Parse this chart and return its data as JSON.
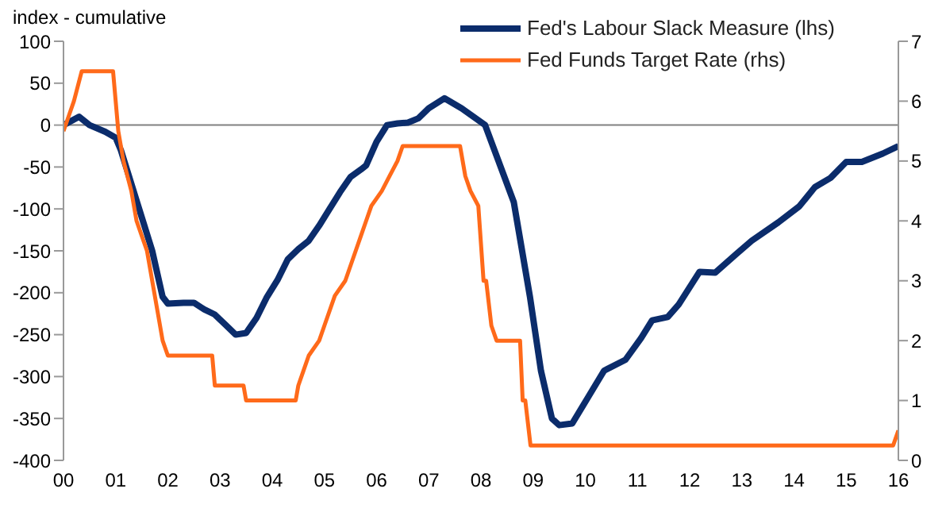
{
  "chart_data": {
    "type": "line",
    "ylabel": "index - cumulative",
    "legend": "top right",
    "marker": "none",
    "line_style": "solid",
    "xlim": [
      0,
      16
    ],
    "xticks": [
      {
        "value": 0,
        "label": "00"
      },
      {
        "value": 1,
        "label": "01"
      },
      {
        "value": 2,
        "label": "02"
      },
      {
        "value": 3,
        "label": "03"
      },
      {
        "value": 4,
        "label": "04"
      },
      {
        "value": 5,
        "label": "05"
      },
      {
        "value": 6,
        "label": "06"
      },
      {
        "value": 7,
        "label": "07"
      },
      {
        "value": 8,
        "label": "08"
      },
      {
        "value": 9,
        "label": "09"
      },
      {
        "value": 10,
        "label": "10"
      },
      {
        "value": 11,
        "label": "11"
      },
      {
        "value": 12,
        "label": "12"
      },
      {
        "value": 13,
        "label": "13"
      },
      {
        "value": 14,
        "label": "14"
      },
      {
        "value": 15,
        "label": "15"
      },
      {
        "value": 16,
        "label": "16"
      }
    ],
    "ylim": [
      -400,
      100
    ],
    "yticks": [
      -400,
      -350,
      -300,
      -250,
      -200,
      -150,
      -100,
      -50,
      0,
      50,
      100
    ],
    "y2lim": [
      0,
      7
    ],
    "y2ticks": [
      0,
      1,
      2,
      3,
      4,
      5,
      6,
      7
    ],
    "ref_lines": [
      {
        "axis": "y",
        "value": 0,
        "color": "#808080"
      }
    ],
    "series": [
      {
        "name": "Fed's Labour Slack Measure (lhs)",
        "color": "#0b2c6b",
        "x": [
          0,
          0.3,
          0.5,
          0.8,
          1.0,
          1.1,
          1.3,
          1.5,
          1.7,
          1.9,
          2.0,
          2.3,
          2.5,
          2.7,
          2.9,
          3.1,
          3.3,
          3.5,
          3.7,
          3.9,
          4.1,
          4.3,
          4.5,
          4.7,
          4.9,
          5.1,
          5.3,
          5.5,
          5.7,
          5.8,
          6.0,
          6.2,
          6.4,
          6.6,
          6.8,
          7.0,
          7.3,
          7.63,
          8.08,
          8.63,
          8.94,
          9.15,
          9.36,
          9.5,
          9.75,
          10.06,
          10.36,
          10.77,
          11.07,
          11.28,
          11.58,
          11.79,
          12.19,
          12.49,
          12.89,
          13.19,
          13.7,
          14.1,
          14.4,
          14.7,
          15.0,
          15.3,
          15.7,
          16.0
        ],
        "values": [
          0,
          10,
          0,
          -8,
          -15,
          -30,
          -70,
          -110,
          -150,
          -205,
          -213,
          -212,
          -212,
          -220,
          -226,
          -238,
          -250,
          -248,
          -230,
          -205,
          -185,
          -160,
          -148,
          -138,
          -120,
          -100,
          -80,
          -62,
          -53,
          -48,
          -20,
          0,
          2,
          3,
          8,
          20,
          32,
          20,
          0,
          -92,
          -205,
          -293,
          -350,
          -358,
          -356,
          -324,
          -293,
          -280,
          -254,
          -233,
          -229,
          -214,
          -175,
          -176,
          -154,
          -138,
          -116,
          -97,
          -74,
          -63,
          -44,
          -44,
          -34,
          -25
        ]
      },
      {
        "name": "Fed Funds Target Rate (rhs)",
        "color": "#ff6a1a",
        "axis": "y2",
        "x": [
          0,
          0.1,
          0.2,
          0.35,
          0.95,
          1.05,
          1.15,
          1.3,
          1.4,
          1.5,
          1.6,
          1.7,
          1.8,
          1.9,
          2.0,
          2.85,
          2.9,
          3.45,
          3.5,
          4.45,
          4.5,
          4.6,
          4.7,
          4.9,
          5.0,
          5.2,
          5.4,
          5.6,
          5.7,
          5.8,
          5.9,
          6.1,
          6.25,
          6.4,
          6.5,
          7.6,
          7.7,
          7.8,
          7.95,
          8.05,
          8.1,
          8.2,
          8.3,
          8.75,
          8.8,
          8.85,
          8.95,
          15.9,
          16.0
        ],
        "values": [
          5.5,
          5.75,
          6.0,
          6.5,
          6.5,
          5.5,
          5.0,
          4.5,
          4.0,
          3.75,
          3.5,
          3.0,
          2.5,
          2.0,
          1.75,
          1.75,
          1.25,
          1.25,
          1.0,
          1.0,
          1.25,
          1.5,
          1.75,
          2.0,
          2.25,
          2.75,
          3.0,
          3.5,
          3.75,
          4.0,
          4.25,
          4.5,
          4.75,
          5.0,
          5.25,
          5.25,
          4.75,
          4.5,
          4.25,
          3.0,
          3.0,
          2.25,
          2.0,
          2.0,
          1.0,
          1.0,
          0.25,
          0.25,
          0.5
        ]
      }
    ]
  }
}
